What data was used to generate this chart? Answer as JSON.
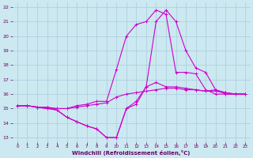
{
  "bg_color": "#cce8f0",
  "grid_color": "#aaccdd",
  "line_color": "#cc00cc",
  "marker_color": "#cc00cc",
  "xlabel": "Windchill (Refroidissement éolien,°C)",
  "xlabel_color": "#660066",
  "tick_color": "#660066",
  "xlim": [
    -0.5,
    23.5
  ],
  "ylim": [
    12.7,
    22.3
  ],
  "xticks": [
    0,
    1,
    2,
    3,
    4,
    5,
    6,
    7,
    8,
    9,
    10,
    11,
    12,
    13,
    14,
    15,
    16,
    17,
    18,
    19,
    20,
    21,
    22,
    23
  ],
  "yticks": [
    13,
    14,
    15,
    16,
    17,
    18,
    19,
    20,
    21,
    22
  ],
  "series1_x": [
    0,
    1,
    2,
    3,
    4,
    5,
    6,
    7,
    8,
    9,
    10,
    11,
    12,
    13,
    14,
    15,
    16,
    17,
    18,
    19,
    20,
    21,
    22,
    23
  ],
  "series1_y": [
    15.2,
    15.2,
    15.1,
    15.1,
    14.9,
    14.4,
    14.1,
    13.8,
    13.6,
    13.0,
    13.0,
    15.0,
    15.3,
    16.5,
    21.0,
    21.8,
    21.0,
    19.0,
    17.8,
    17.5,
    16.3,
    16.0,
    16.0,
    16.0
  ],
  "series2_x": [
    0,
    1,
    2,
    3,
    4,
    5,
    6,
    7,
    8,
    9,
    10,
    11,
    12,
    13,
    14,
    15,
    16,
    17,
    18,
    19,
    20,
    21,
    22,
    23
  ],
  "series2_y": [
    15.2,
    15.2,
    15.1,
    15.0,
    15.0,
    15.0,
    15.1,
    15.2,
    15.3,
    15.4,
    15.8,
    16.0,
    16.1,
    16.2,
    16.3,
    16.4,
    16.4,
    16.3,
    16.3,
    16.2,
    16.3,
    16.1,
    16.0,
    16.0
  ],
  "series3_x": [
    0,
    1,
    2,
    3,
    4,
    5,
    6,
    7,
    8,
    9,
    10,
    11,
    12,
    13,
    14,
    15,
    16,
    17,
    18,
    19,
    20,
    21,
    22,
    23
  ],
  "series3_y": [
    15.2,
    15.2,
    15.1,
    15.0,
    14.9,
    14.4,
    14.1,
    13.8,
    13.6,
    13.0,
    13.0,
    15.0,
    15.5,
    16.5,
    16.8,
    16.5,
    16.5,
    16.4,
    16.3,
    16.2,
    16.2,
    16.1,
    16.0,
    16.0
  ],
  "series4_x": [
    0,
    1,
    2,
    3,
    4,
    5,
    6,
    7,
    8,
    9,
    10,
    11,
    12,
    13,
    14,
    15,
    16,
    17,
    18,
    19,
    20,
    21,
    22,
    23
  ],
  "series4_y": [
    15.2,
    15.2,
    15.1,
    15.1,
    15.0,
    15.0,
    15.2,
    15.3,
    15.5,
    15.5,
    17.7,
    20.0,
    20.8,
    21.0,
    21.8,
    21.5,
    17.5,
    17.5,
    17.4,
    16.3,
    16.0,
    16.0,
    16.0,
    16.0
  ]
}
